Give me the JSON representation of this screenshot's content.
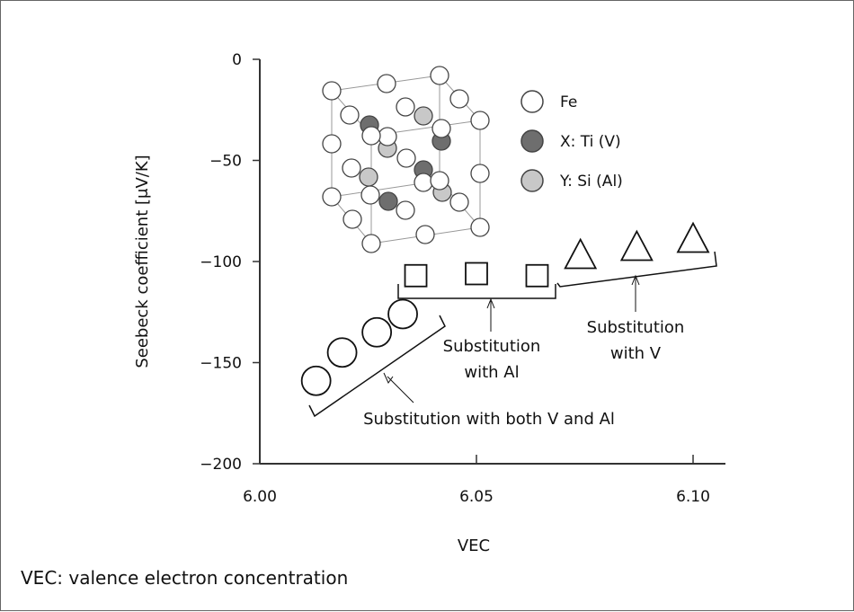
{
  "chart_data": {
    "type": "scatter",
    "xlabel": "VEC",
    "ylabel": "Seebeck coefficient [μV/K]",
    "xlim": [
      6.0,
      6.107
    ],
    "ylim": [
      -200,
      0
    ],
    "xticks": [
      6.0,
      6.05,
      6.1
    ],
    "xtick_labels": [
      "6.00",
      "6.05",
      "6.10"
    ],
    "yticks": [
      0,
      -50,
      -100,
      -150,
      -200
    ],
    "ytick_labels": [
      "0",
      "−50",
      "−100",
      "−150",
      "−200"
    ],
    "grid": false,
    "series": [
      {
        "marker": "circle",
        "annotation": "Substitution with both V and Al",
        "x": [
          6.013,
          6.019,
          6.027,
          6.033
        ],
        "y": [
          -159,
          -145,
          -135,
          -126
        ]
      },
      {
        "marker": "square",
        "annotation": "Substitution with Al",
        "x": [
          6.036,
          6.05,
          6.064
        ],
        "y": [
          -107,
          -106,
          -107
        ]
      },
      {
        "marker": "triangle",
        "annotation": "Substitution with V",
        "x": [
          6.074,
          6.087,
          6.1
        ],
        "y": [
          -98,
          -94,
          -90
        ]
      }
    ],
    "legend": {
      "placement": "top-center",
      "entries": [
        {
          "label": "Fe",
          "color": "#ffffff"
        },
        {
          "label": "X: Ti (V)",
          "color": "#6e6e6e"
        },
        {
          "label": "Y: Si (Al)",
          "color": "#c8c8c8"
        }
      ]
    },
    "annotations": [
      {
        "lines": [
          "Substitution with both V and Al"
        ]
      },
      {
        "lines": [
          "Substitution",
          "with Al"
        ]
      },
      {
        "lines": [
          "Substitution",
          "with V"
        ]
      }
    ]
  },
  "footnote": "VEC: valence electron concentration"
}
